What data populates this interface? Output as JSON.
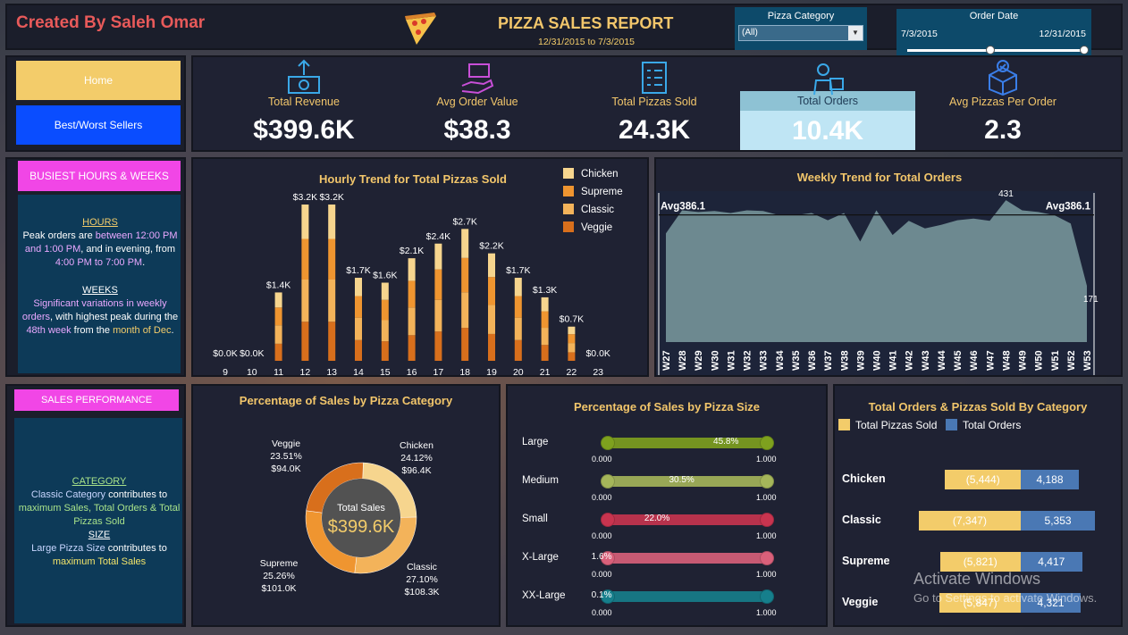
{
  "header": {
    "creator": "Created By Saleh Omar",
    "title": "PIZZA SALES REPORT",
    "date_range": "12/31/2015  to 7/3/2015",
    "pizza_category": {
      "label": "Pizza Category",
      "value": "(All)"
    },
    "order_date": {
      "label": "Order Date",
      "start": "7/3/2015",
      "end": "12/31/2015"
    }
  },
  "nav": {
    "home": "Home",
    "best_worst": "Best/Worst Sellers"
  },
  "kpis": [
    {
      "label": "Total Revenue",
      "value": "$399.6K",
      "icon": "money-icon"
    },
    {
      "label": "Avg Order Value",
      "value": "$38.3",
      "icon": "hand-box-icon"
    },
    {
      "label": "Total Pizzas Sold",
      "value": "24.3K",
      "icon": "clipboard-icon"
    },
    {
      "label": "Total Orders",
      "value": "10.4K",
      "icon": "delivery-man-icon"
    },
    {
      "label": "Avg Pizzas Per Order",
      "value": "2.3",
      "icon": "box-check-icon"
    }
  ],
  "busiest": {
    "header": "BUSIEST HOURS & WEEKS",
    "hours_title": "HOURS",
    "hours_p1": "Peak orders are ",
    "hours_p2": "between 12:00 PM and 1:00 PM",
    "hours_p3": ", and in evening, from ",
    "hours_p4": "4:00 PM to 7:00 PM",
    "hours_p5": ".",
    "weeks_title": "WEEKS",
    "weeks_p1": "Significant variations in weekly orders",
    "weeks_p2": ", with highest peak during the ",
    "weeks_p3": "48th week",
    "weeks_p4": " from the ",
    "weeks_p5": "month of Dec",
    "weeks_p6": "."
  },
  "sales_perf": {
    "header": "SALES PERFORMANCE",
    "cat_title": "CATEGORY",
    "cat_p1": "Classic Category",
    "cat_p2": " contributes to ",
    "cat_p3": "maximum Sales, Total Orders & Total Pizzas Sold",
    "size_title": "SIZE",
    "size_p1": "Large Pizza Size",
    "size_p2": " contributes to ",
    "size_p3": "maximum Total Sales"
  },
  "hourly_title": "Hourly Trend for Total Pizzas Sold",
  "weekly_title": "Weekly Trend for Total Orders",
  "donut_title": "Percentage of Sales by Pizza Category",
  "size_title": "Percentage of Sales by Pizza Size",
  "cat_title": "Total Orders & Pizzas Sold By Category",
  "watermark": {
    "line1": "Activate Windows",
    "line2": "Go to Settings to activate Windows."
  },
  "chart_data": [
    {
      "type": "bar",
      "title": "Hourly Trend for Total Pizzas Sold",
      "categories": [
        "9",
        "10",
        "11",
        "12",
        "13",
        "14",
        "15",
        "16",
        "17",
        "18",
        "19",
        "20",
        "21",
        "22",
        "23"
      ],
      "labels": [
        "$0.0K",
        "$0.0K",
        "$1.4K",
        "$3.2K",
        "$3.2K",
        "$1.7K",
        "$1.6K",
        "$2.1K",
        "$2.4K",
        "$2.7K",
        "$2.2K",
        "$1.7K",
        "$1.3K",
        "$0.7K",
        "$0.0K"
      ],
      "values": [
        0.0,
        0.0,
        1.4,
        3.2,
        3.2,
        1.7,
        1.6,
        2.1,
        2.4,
        2.7,
        2.2,
        1.7,
        1.3,
        0.7,
        0.0
      ],
      "legend": [
        "Chicken",
        "Supreme",
        "Classic",
        "Veggie"
      ],
      "colors": [
        "#f6d58e",
        "#ef9530",
        "#f3b35a",
        "#d86f1c"
      ],
      "shares": [
        0.22,
        0.26,
        0.27,
        0.25
      ]
    },
    {
      "type": "area",
      "title": "Weekly Trend for Total Orders",
      "categories": [
        "W27",
        "W28",
        "W29",
        "W30",
        "W31",
        "W32",
        "W33",
        "W34",
        "W35",
        "W36",
        "W37",
        "W38",
        "W39",
        "W40",
        "W41",
        "W42",
        "W43",
        "W44",
        "W45",
        "W46",
        "W47",
        "W48",
        "W49",
        "W50",
        "W51",
        "W52",
        "W53"
      ],
      "values": [
        330,
        400,
        395,
        398,
        392,
        400,
        398,
        385,
        385,
        392,
        370,
        392,
        305,
        400,
        325,
        368,
        345,
        356,
        370,
        375,
        368,
        431,
        400,
        395,
        385,
        360,
        171
      ],
      "avg": 386.1,
      "avg_label_left": "Avg386.1",
      "avg_label_right": "Avg386.1",
      "max_label": "431",
      "min_label": "171",
      "ylim": [
        0,
        480
      ]
    },
    {
      "type": "pie",
      "title": "Percentage of Sales by Pizza Category",
      "center_label": "Total Sales",
      "center_value": "$399.6K",
      "slices": [
        {
          "name": "Chicken",
          "pct": "24.12%",
          "value": "$96.4K",
          "share": 0.2412,
          "color": "#f6d58e"
        },
        {
          "name": "Classic",
          "pct": "27.10%",
          "value": "$108.3K",
          "share": 0.271,
          "color": "#f3b35a"
        },
        {
          "name": "Supreme",
          "pct": "25.26%",
          "value": "$101.0K",
          "share": 0.2526,
          "color": "#ef9530"
        },
        {
          "name": "Veggie",
          "pct": "23.51%",
          "value": "$94.0K",
          "share": 0.2351,
          "color": "#d86f1c"
        }
      ]
    },
    {
      "type": "bar",
      "title": "Percentage of Sales by Pizza Size",
      "tick_min": "0.000",
      "tick_max": "1.000",
      "rows": [
        {
          "name": "Large",
          "label": "45.8%",
          "value": 0.458,
          "color": "#7ea11e"
        },
        {
          "name": "Medium",
          "label": "30.5%",
          "value": 0.305,
          "color": "#a5b65a"
        },
        {
          "name": "Small",
          "label": "22.0%",
          "value": 0.22,
          "color": "#c8344f"
        },
        {
          "name": "X-Large",
          "label": "1.6%",
          "value": 0.016,
          "color": "#d9607a"
        },
        {
          "name": "XX-Large",
          "label": "0.1%",
          "value": 0.001,
          "color": "#167f8c"
        }
      ]
    },
    {
      "type": "bar",
      "title": "Total Orders & Pizzas Sold By Category",
      "legend": [
        "Total Pizzas Sold",
        "Total Orders"
      ],
      "colors": [
        "#f3cc6a",
        "#4a78b4"
      ],
      "rows": [
        {
          "name": "Chicken",
          "pizzas": 5444,
          "pizzas_label": "(5,444)",
          "orders": 4188,
          "orders_label": "4,188"
        },
        {
          "name": "Classic",
          "pizzas": 7347,
          "pizzas_label": "(7,347)",
          "orders": 5353,
          "orders_label": "5,353"
        },
        {
          "name": "Supreme",
          "pizzas": 5821,
          "pizzas_label": "(5,821)",
          "orders": 4417,
          "orders_label": "4,417"
        },
        {
          "name": "Veggie",
          "pizzas": 5847,
          "pizzas_label": "(5,847)",
          "orders": 4321,
          "orders_label": "4,321"
        }
      ]
    }
  ]
}
